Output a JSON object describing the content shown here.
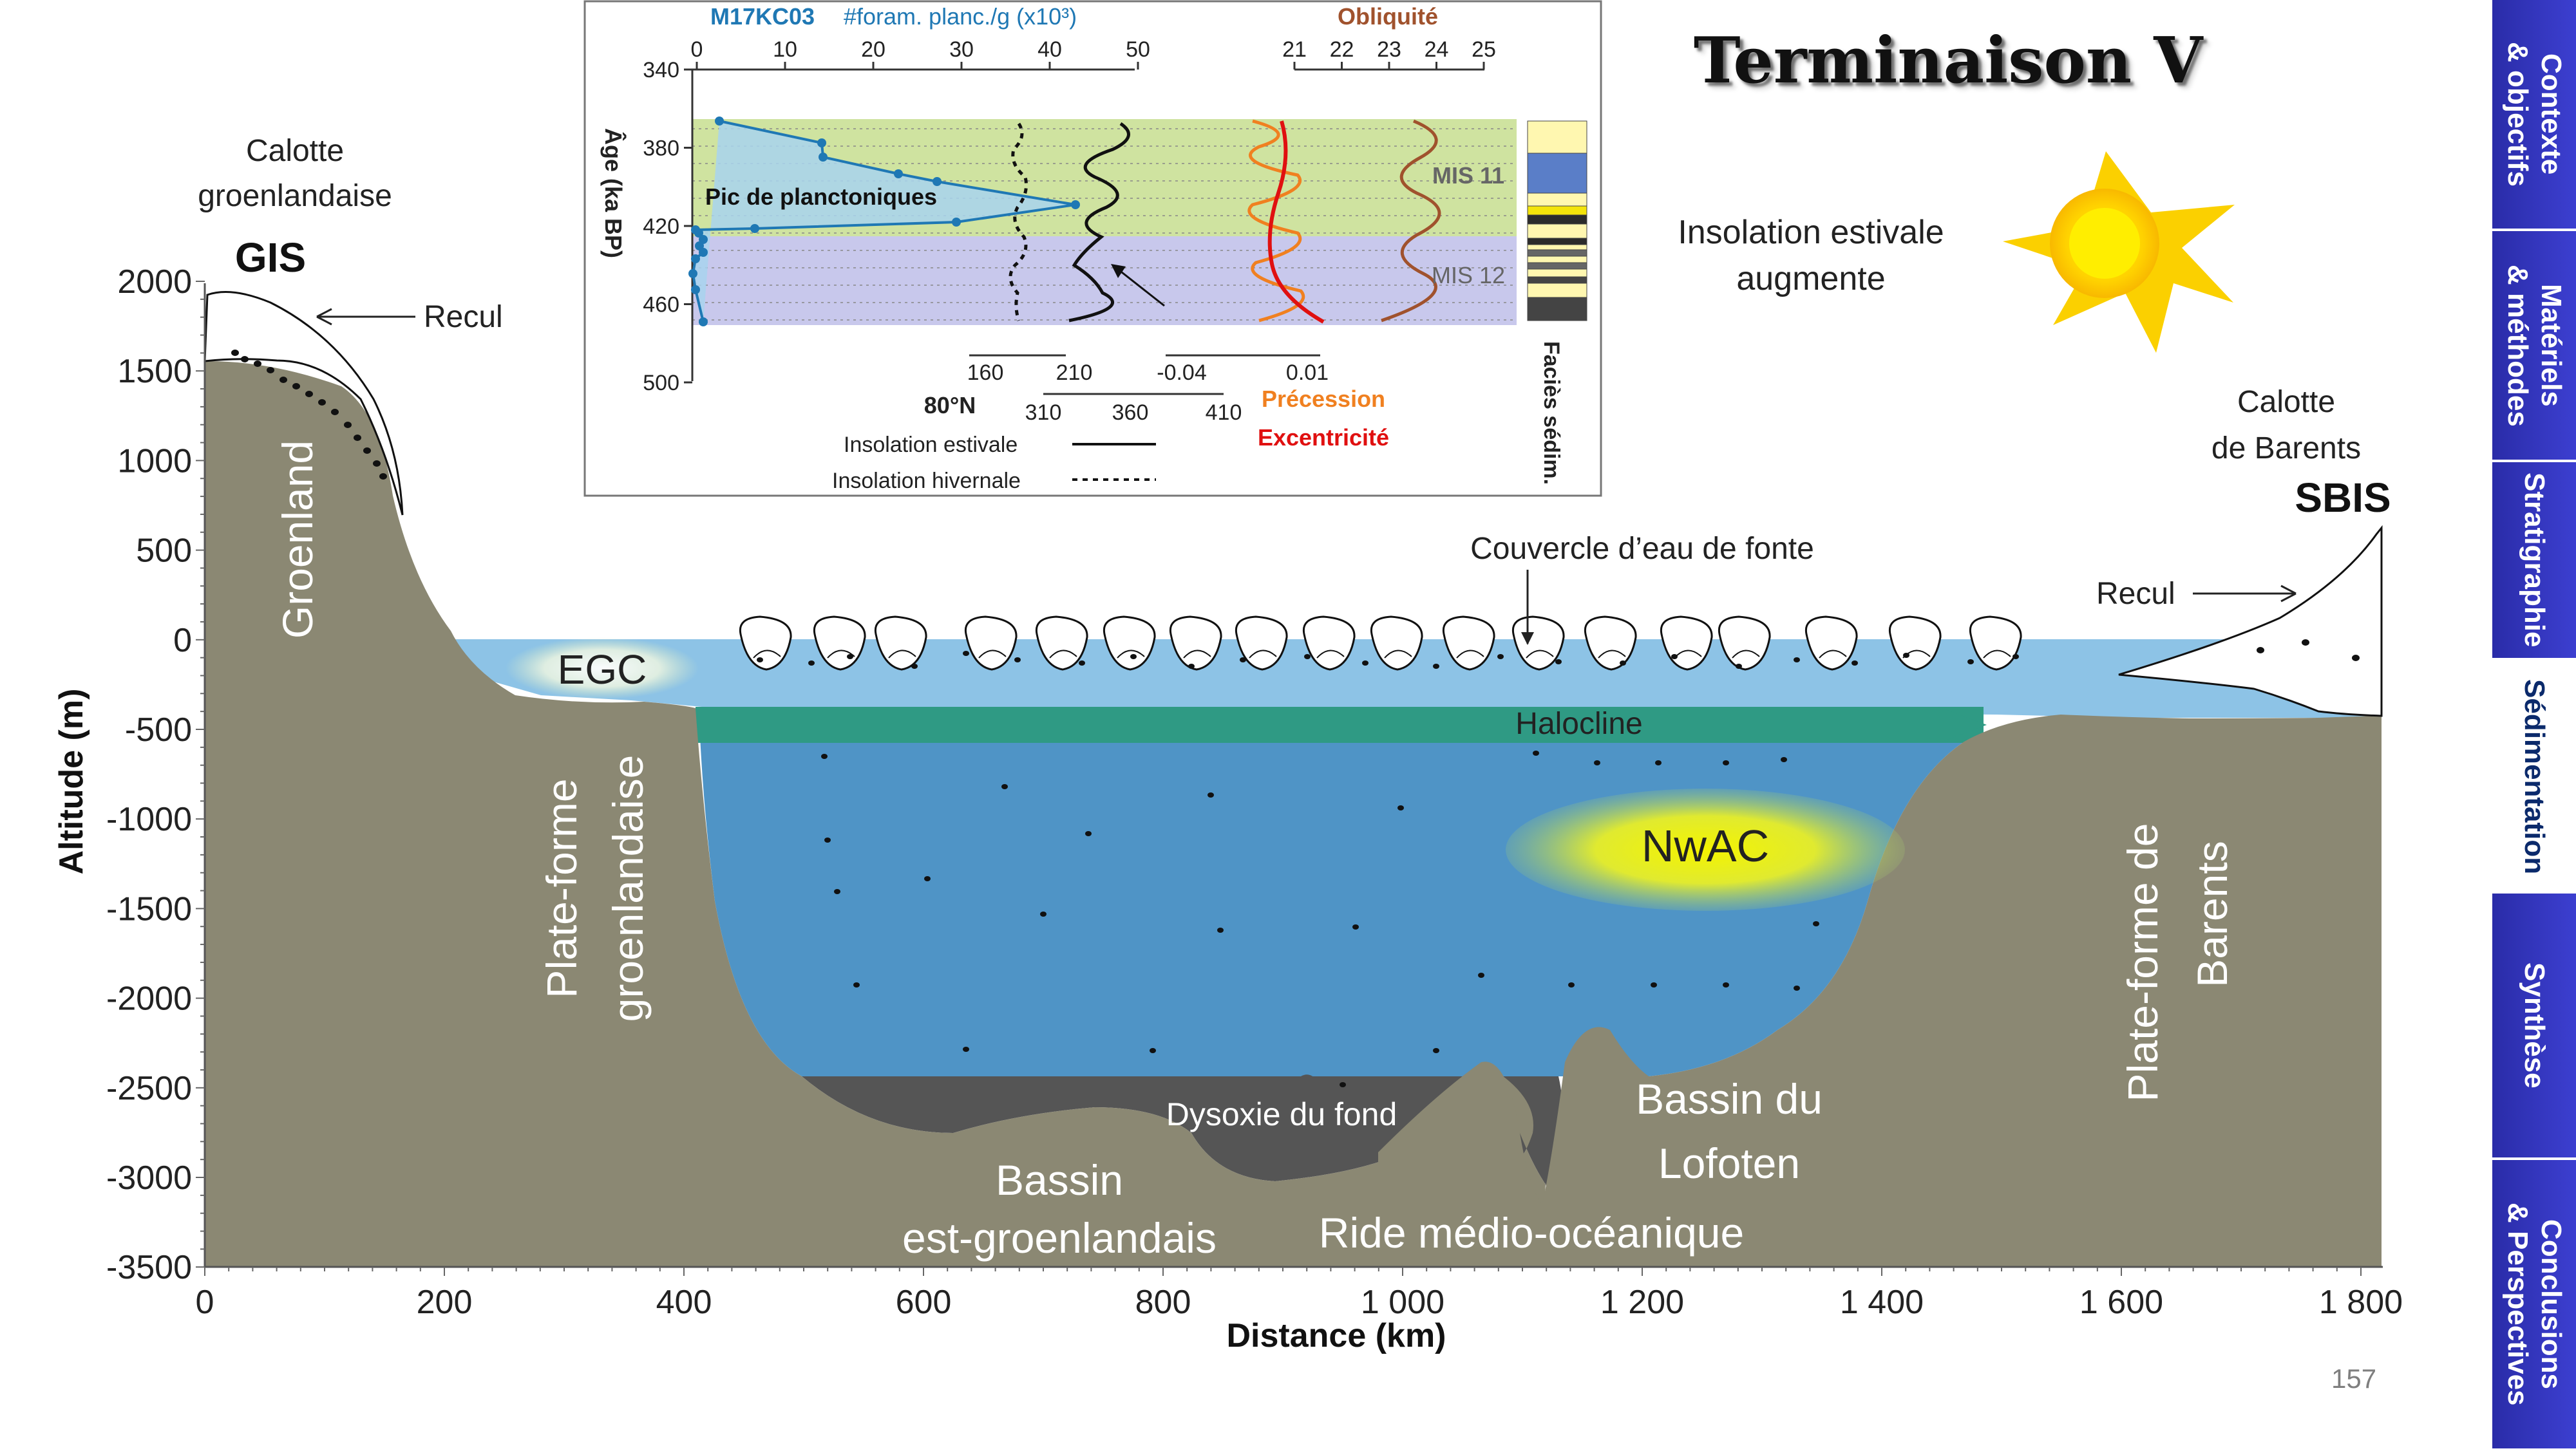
{
  "title": "Terminaison V",
  "page_number": "157",
  "nav": [
    {
      "label": "Contexte\n& objectifs",
      "active": false
    },
    {
      "label": "Matériels\n& méthodes",
      "active": false
    },
    {
      "label": "Stratigraphie",
      "active": false
    },
    {
      "label": "Sédimentation",
      "active": true
    },
    {
      "label": "Synthèse",
      "active": false
    },
    {
      "label": "Conclusions\n& Perspectives",
      "active": false
    }
  ],
  "section": {
    "ylabel": "Altitude (m)",
    "xlabel": "Distance (km)",
    "yticks": [
      "2000",
      "1500",
      "1000",
      "500",
      "0",
      "-500",
      "-1000",
      "-1500",
      "-2000",
      "-2500",
      "-3000",
      "-3500"
    ],
    "xticks": [
      "0",
      "200",
      "400",
      "600",
      "800",
      "1 000",
      "1 200",
      "1 400",
      "1 600",
      "1 800"
    ],
    "ice_left": {
      "line1": "Calotte",
      "line2": "groenlandaise",
      "abbr": "GIS",
      "recul": "Recul"
    },
    "ice_right": {
      "line1": "Calotte",
      "line2": "de Barents",
      "abbr": "SBIS",
      "recul": "Recul"
    },
    "groenland": "Groenland",
    "plateforme_gr": {
      "line1": "Plate-forme",
      "line2": "groenlandaise"
    },
    "plateforme_ba": {
      "line1": "Plate-forme de",
      "line2": "Barents"
    },
    "egc": "EGC",
    "nwac": "NwAC",
    "halocline": "Halocline",
    "couvercle": "Couvercle d’eau de fonte",
    "dysoxie": "Dysoxie du fond",
    "bassin_eg": {
      "line1": "Bassin",
      "line2": "est-groenlandais"
    },
    "bassin_lo": {
      "line1": "Bassin du",
      "line2": "Lofoten"
    },
    "ride": "Ride médio-océanique",
    "insolation": {
      "line1": "Insolation estivale",
      "line2": "augmente"
    }
  },
  "inset": {
    "core": "M17KC03",
    "foram_label": "#foram. planc./g (x10³)",
    "foram_ticks": [
      "0",
      "10",
      "20",
      "30",
      "40",
      "50"
    ],
    "obliquite": "Obliquité",
    "obl_ticks": [
      "21",
      "22",
      "23",
      "24",
      "25"
    ],
    "age_label": "Âge (ka BP)",
    "age_ticks": [
      "340",
      "380",
      "420",
      "460",
      "500"
    ],
    "pic": "Pic de planctoniques",
    "mis11": "MIS 11",
    "mis12": "MIS 12",
    "ins_top_ticks": [
      "160",
      "210"
    ],
    "ins_bottom_ticks": [
      "310",
      "360",
      "410"
    ],
    "lat": "80°N",
    "ecc_ticks": [
      "-0.04",
      "0.01"
    ],
    "precession": "Précession",
    "excentricite": "Excentricité",
    "ins_est": "Insolation estivale",
    "ins_hiv": "Insolation hivernale",
    "facies": "Faciès sédim.",
    "colors": {
      "foram": "#1f78b4",
      "precession": "#f08020",
      "excentricite": "#e01010",
      "obliquite": "#a0522d",
      "mis11": "#cfe3a0",
      "mis12": "#c8c8ec"
    }
  }
}
